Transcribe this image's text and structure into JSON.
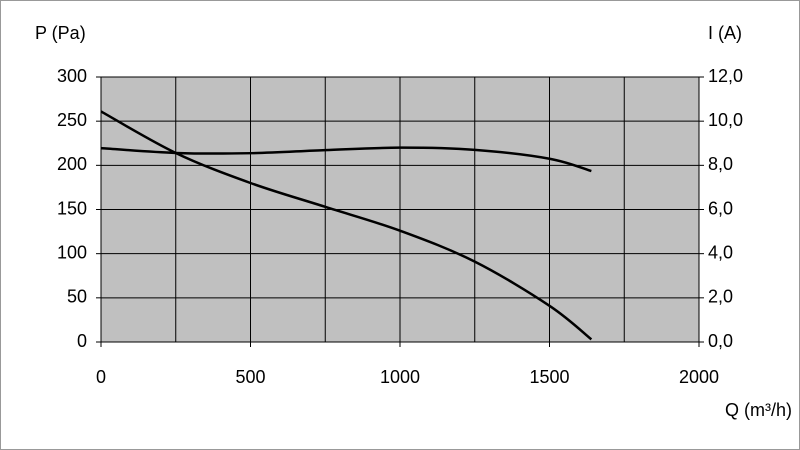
{
  "chart_data": {
    "type": "line",
    "y_label": "P (Pa)",
    "y2_label": "I (A)",
    "x_label": "Q (m³/h)",
    "x": [
      0,
      250,
      500,
      750,
      1000,
      1250,
      1500,
      1640
    ],
    "series": [
      {
        "name": "P",
        "color": "#000000",
        "values": [
          261,
          214,
          180,
          153,
          126,
          91,
          41,
          3
        ]
      },
      {
        "name": "I",
        "color": "#000000",
        "axis": "y2",
        "values": [
          8.78,
          8.56,
          8.55,
          8.69,
          8.8,
          8.7,
          8.3,
          7.74
        ]
      }
    ],
    "xlim": [
      0,
      2000
    ],
    "xticks": [
      0,
      500,
      1000,
      1500,
      2000
    ],
    "xgrid": [
      0,
      250,
      500,
      750,
      1000,
      1250,
      1500,
      1750,
      2000
    ],
    "ylim": [
      0,
      300
    ],
    "yticks": [
      0,
      50,
      100,
      150,
      200,
      250,
      300
    ],
    "y2lim": [
      0,
      12
    ],
    "y2ticks": [
      {
        "value": 0,
        "label": "0,0"
      },
      {
        "value": 2,
        "label": "2,0"
      },
      {
        "value": 4,
        "label": "4,0"
      },
      {
        "value": 6,
        "label": "6,0"
      },
      {
        "value": 8,
        "label": "8,0"
      },
      {
        "value": 10,
        "label": "10,0"
      },
      {
        "value": 12,
        "label": "12,0"
      }
    ],
    "grid": true,
    "plot_background": "#c0c0c0"
  }
}
